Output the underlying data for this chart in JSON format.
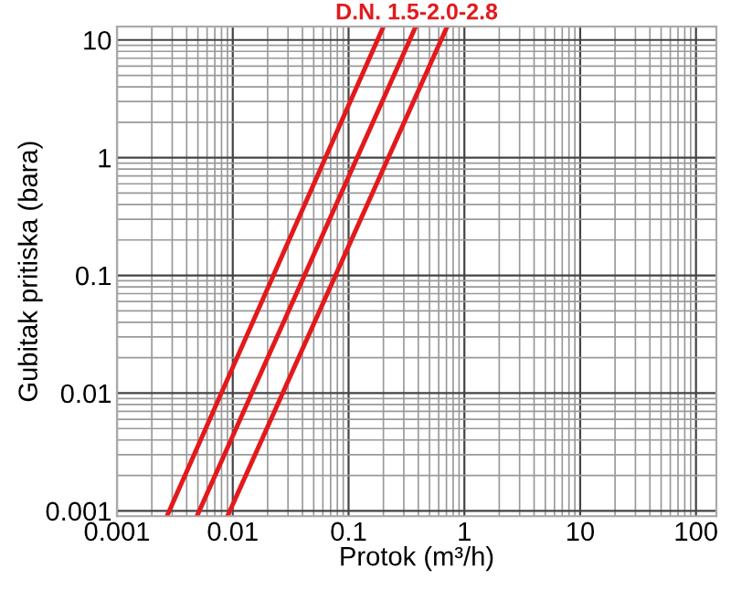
{
  "chart_data": {
    "type": "line",
    "title": "D.N. 1.5-2.0-2.8",
    "xlabel": "Protok (m³/h)",
    "ylabel": "Gubitak pritiska (bara)",
    "log": "xy",
    "grid": true,
    "line_style": "solid",
    "marker": "none",
    "xlim": [
      0.001,
      150
    ],
    "ylim": [
      0.0009,
      13
    ],
    "xticks": [
      0.001,
      0.01,
      0.1,
      1,
      10,
      100
    ],
    "yticks": [
      0.001,
      0.01,
      0.1,
      1,
      10
    ],
    "series": [
      {
        "color": "#e3191c",
        "x": [
          0.0027,
          0.2
        ],
        "values": [
          0.0009,
          13
        ]
      },
      {
        "color": "#e3191c",
        "x": [
          0.0049,
          0.38
        ],
        "values": [
          0.0009,
          13
        ]
      },
      {
        "color": "#e3191c",
        "x": [
          0.009,
          0.71
        ],
        "values": [
          0.0009,
          13
        ]
      }
    ]
  }
}
